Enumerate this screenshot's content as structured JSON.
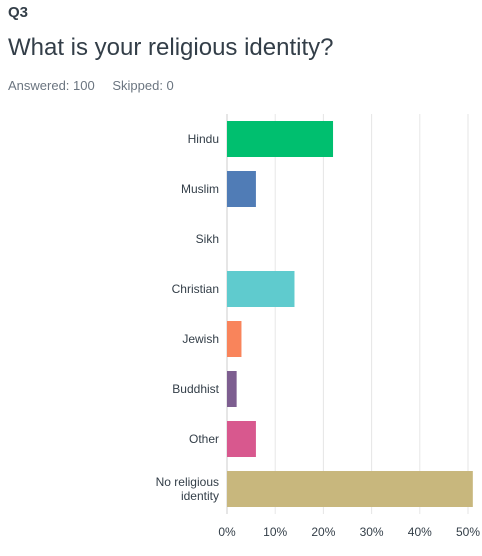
{
  "question": {
    "number": "Q3",
    "title": "What is your religious identity?",
    "answered": "Answered: 100",
    "skipped": "Skipped: 0"
  },
  "chart_data": {
    "type": "bar",
    "orientation": "horizontal",
    "categories": [
      "Hindu",
      "Muslim",
      "Sikh",
      "Christian",
      "Jewish",
      "Buddhist",
      "Other",
      "No religious identity"
    ],
    "values": [
      22,
      6,
      0,
      14,
      3,
      2,
      6,
      51
    ],
    "colors": [
      "#00bf6f",
      "#507cb6",
      "#6bc8cd",
      "#5fcbce",
      "#f9845b",
      "#7d5e90",
      "#d8588e",
      "#c8b77d"
    ],
    "xlim": [
      0,
      50
    ],
    "xticks": [
      "0%",
      "10%",
      "20%",
      "30%",
      "40%",
      "50%"
    ],
    "grid": true
  }
}
